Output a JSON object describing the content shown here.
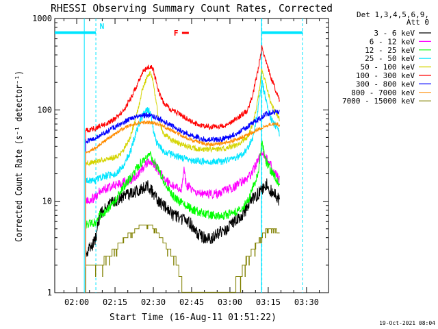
{
  "chart_data": {
    "type": "line",
    "title": "RHESSI Observing Summary Count Rates, Corrected",
    "xlabel": "Start Time (16-Aug-11 01:51:22)",
    "ylabel": "Corrected Count Rate (s⁻¹ detector⁻¹)",
    "y_scale": "log",
    "ylim": [
      1,
      1000
    ],
    "xlim_minutes": [
      -8.6,
      98.6
    ],
    "x_ticks": [
      {
        "label": "02:00",
        "min": 0
      },
      {
        "label": "02:15",
        "min": 15
      },
      {
        "label": "02:30",
        "min": 30
      },
      {
        "label": "02:45",
        "min": 45
      },
      {
        "label": "03:00",
        "min": 60
      },
      {
        "label": "03:15",
        "min": 75
      },
      {
        "label": "03:30",
        "min": 90
      }
    ],
    "y_ticks": [
      {
        "label": "1",
        "value": 1
      },
      {
        "label": "10",
        "value": 10
      },
      {
        "label": "100",
        "value": 100
      },
      {
        "label": "1000",
        "value": 1000
      }
    ],
    "legend_header": [
      "Det 1,3,4,5,6,9,",
      "Att 0"
    ],
    "legend_placement": "right, outside plot",
    "timestamp": "19-Oct-2021 08:04",
    "annotations": [
      {
        "text": "N",
        "color": "#00e5ff",
        "x_min": 9
      },
      {
        "text": "F",
        "color": "#ff0000",
        "x_min": 38
      }
    ],
    "night_bars": [
      {
        "x0": -8.6,
        "x1": 7.5
      },
      {
        "x0": 72.5,
        "x1": 88.5
      }
    ],
    "night_lines": [
      7.5,
      72.5,
      88.5
    ],
    "data_window": [
      3.5,
      79.5
    ],
    "series": [
      {
        "name": "3 - 6 keV",
        "color": "#000000",
        "noise": 0.07,
        "x": [
          3.5,
          7.5,
          9,
          12,
          15,
          18,
          21,
          24,
          26,
          28,
          30,
          32,
          34,
          36,
          38,
          41,
          44,
          47,
          50,
          53,
          56,
          59,
          62,
          65,
          68,
          71,
          73,
          74.5,
          76,
          78,
          79.5
        ],
        "y": [
          2.5,
          4,
          7,
          9,
          10,
          11,
          12,
          13,
          14,
          15,
          12,
          10,
          9,
          8,
          7,
          6.5,
          6,
          4.5,
          4,
          4,
          4.5,
          5,
          6,
          7,
          10,
          12,
          14,
          16,
          13,
          12,
          10
        ]
      },
      {
        "name": "6 - 12 keV",
        "color": "#ff00ff",
        "noise": 0.05,
        "x": [
          3.5,
          7.5,
          9,
          12,
          15,
          18,
          21,
          24,
          27,
          29,
          31,
          34,
          37,
          39,
          41,
          42,
          43,
          46,
          49,
          52,
          55,
          58,
          61,
          64,
          67,
          69,
          71,
          72.5,
          74,
          76,
          78,
          79.5
        ],
        "y": [
          10,
          11,
          13,
          14,
          15,
          16,
          17,
          20,
          25,
          28,
          24,
          18,
          15,
          14,
          14,
          22,
          15,
          13,
          12,
          12,
          12,
          13,
          14,
          16,
          18,
          21,
          28,
          35,
          30,
          25,
          20,
          17
        ]
      },
      {
        "name": "12 - 25 keV",
        "color": "#00ff00",
        "noise": 0.05,
        "x": [
          3.5,
          7.5,
          9,
          12,
          15,
          18,
          21,
          24,
          27,
          29,
          31,
          34,
          37,
          40,
          43,
          46,
          49,
          52,
          55,
          58,
          61,
          64,
          67,
          69,
          71,
          72.5,
          74,
          76,
          78,
          79.5
        ],
        "y": [
          5.5,
          6,
          7,
          8,
          10,
          14,
          18,
          24,
          30,
          32,
          25,
          17,
          12,
          10,
          9,
          8,
          7.5,
          7,
          7,
          7,
          7.5,
          8,
          10,
          14,
          20,
          45,
          28,
          22,
          18,
          15
        ]
      },
      {
        "name": "25 - 50 keV",
        "color": "#00e5ff",
        "noise": 0.04,
        "x": [
          3.5,
          7.5,
          9,
          12,
          15,
          18,
          21,
          24,
          26,
          28,
          29,
          30,
          31,
          33,
          35,
          38,
          41,
          44,
          47,
          50,
          53,
          56,
          59,
          62,
          65,
          67,
          69,
          71,
          72.5,
          74,
          76,
          78,
          79.5
        ],
        "y": [
          17,
          17,
          18,
          19,
          20,
          24,
          35,
          65,
          90,
          100,
          90,
          60,
          45,
          38,
          34,
          32,
          30,
          29,
          28,
          27,
          27,
          27,
          28,
          30,
          33,
          38,
          50,
          100,
          210,
          130,
          80,
          65,
          55
        ]
      },
      {
        "name": "50 - 100 keV",
        "color": "#d4d400",
        "noise": 0.03,
        "x": [
          3.5,
          7.5,
          9,
          12,
          15,
          18,
          21,
          24,
          26,
          28,
          29,
          30,
          31,
          32,
          34,
          37,
          40,
          43,
          46,
          49,
          52,
          55,
          58,
          61,
          64,
          67,
          69,
          71,
          72.5,
          74,
          76,
          78,
          79.5
        ],
        "y": [
          26,
          27,
          28,
          29,
          30,
          35,
          50,
          100,
          180,
          240,
          250,
          200,
          130,
          80,
          55,
          47,
          43,
          40,
          38,
          37,
          37,
          37,
          38,
          40,
          43,
          50,
          70,
          130,
          280,
          200,
          120,
          90,
          80
        ]
      },
      {
        "name": "100 - 300 keV",
        "color": "#ff0000",
        "noise": 0.03,
        "x": [
          3.5,
          7.5,
          9,
          12,
          15,
          18,
          21,
          24,
          26,
          28,
          29,
          30,
          31,
          32,
          34,
          37,
          40,
          43,
          46,
          49,
          52,
          55,
          58,
          61,
          64,
          67,
          69,
          71,
          72.5,
          74,
          76,
          78,
          79.5
        ],
        "y": [
          60,
          63,
          67,
          72,
          80,
          95,
          130,
          200,
          260,
          290,
          300,
          270,
          210,
          160,
          120,
          100,
          90,
          80,
          72,
          67,
          65,
          65,
          68,
          75,
          85,
          100,
          150,
          270,
          480,
          360,
          230,
          160,
          130
        ]
      },
      {
        "name": "300 - 800 keV",
        "color": "#0000ff",
        "noise": 0.03,
        "x": [
          3.5,
          7.5,
          9,
          12,
          15,
          18,
          21,
          24,
          27,
          30,
          33,
          36,
          39,
          42,
          45,
          48,
          51,
          54,
          57,
          60,
          63,
          66,
          69,
          72,
          74,
          76,
          78,
          79.5
        ],
        "y": [
          45,
          48,
          52,
          58,
          65,
          72,
          80,
          85,
          88,
          85,
          78,
          70,
          63,
          57,
          52,
          49,
          47,
          47,
          48,
          51,
          56,
          63,
          72,
          82,
          90,
          93,
          95,
          93
        ]
      },
      {
        "name": "800 - 7000 keV",
        "color": "#ff8c00",
        "noise": 0.02,
        "x": [
          3.5,
          7.5,
          9,
          12,
          15,
          18,
          21,
          24,
          27,
          30,
          33,
          36,
          39,
          42,
          45,
          48,
          51,
          54,
          57,
          60,
          63,
          66,
          69,
          72,
          74,
          76,
          78,
          79.5
        ],
        "y": [
          34,
          38,
          42,
          48,
          55,
          62,
          68,
          72,
          73,
          72,
          68,
          62,
          56,
          51,
          47,
          44,
          42,
          42,
          43,
          45,
          48,
          52,
          57,
          63,
          67,
          70,
          70,
          68
        ]
      },
      {
        "name": "7000 - 15000 keV",
        "color": "#808000",
        "noise": 0,
        "x": [
          3.5,
          7.5,
          9,
          11,
          13,
          15,
          17,
          19,
          21,
          23,
          25,
          27,
          29,
          31,
          33,
          35,
          37,
          39,
          40,
          42,
          45,
          50,
          55,
          60,
          64,
          66,
          68,
          70,
          72,
          74,
          76,
          78,
          79.5
        ],
        "y": [
          1.9,
          1.9,
          2,
          2.3,
          2.6,
          3,
          3.5,
          4,
          4.5,
          4.8,
          5.5,
          5.5,
          5.5,
          4.8,
          4,
          3.3,
          2.7,
          2.2,
          1.7,
          1,
          1,
          1,
          1,
          1,
          1.5,
          2.2,
          2.7,
          3.3,
          4,
          4.8,
          4.8,
          4.8,
          4.5
        ]
      }
    ]
  }
}
